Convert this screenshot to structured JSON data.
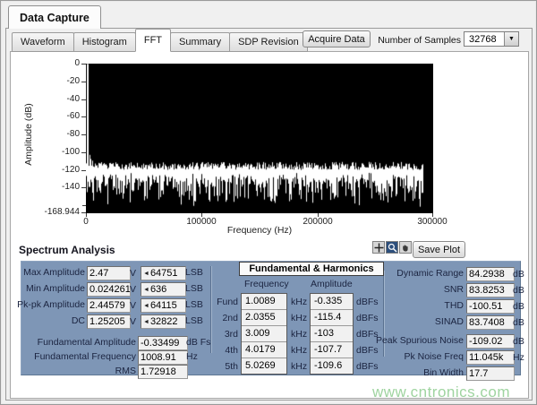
{
  "window_tab": "Data Capture",
  "tabs": [
    {
      "label": "Waveform",
      "active": false
    },
    {
      "label": "Histogram",
      "active": false
    },
    {
      "label": "FFT",
      "active": true
    },
    {
      "label": "Summary",
      "active": false
    },
    {
      "label": "SDP Revision",
      "active": false
    }
  ],
  "toolbar": {
    "acquire_label": "Acquire Data",
    "samples_label": "Number of Samples",
    "samples_value": "32768",
    "save_plot_label": "Save Plot"
  },
  "chart_data": {
    "type": "line",
    "title": "",
    "xlabel": "Frequency (Hz)",
    "ylabel": "Amplitude (dB)",
    "xlim": [
      0,
      300000
    ],
    "ylim": [
      -168.944,
      0
    ],
    "x_ticks": [
      0,
      100000,
      200000,
      300000
    ],
    "x_tick_labels": [
      "0",
      "100000",
      "200000",
      "300000"
    ],
    "y_ticks": [
      0,
      -20,
      -40,
      -60,
      -80,
      -100,
      -120,
      -140,
      -168.944
    ],
    "y_tick_labels": [
      "0",
      "-20",
      "-40",
      "-60",
      "-80",
      "-100",
      "-120",
      "-140",
      "-168.944"
    ],
    "y_minor_unlabeled_ticks": [
      -160
    ],
    "grid": true,
    "legend": "none",
    "plot_bg": "#000000",
    "grid_major_color": "#2f6b2f",
    "grid_minor_color": "#163016",
    "line_color": "#ffffff",
    "series": [
      {
        "name": "fundamental_and_harmonics_peaks",
        "points": [
          {
            "x": 1008.91,
            "y": -0.335
          },
          {
            "x": 2035.5,
            "y": -115.4
          },
          {
            "x": 3009,
            "y": -103
          },
          {
            "x": 4017.9,
            "y": -107.7
          },
          {
            "x": 5026.9,
            "y": -109.6
          }
        ]
      },
      {
        "name": "noise_floor",
        "description": "white noise band ending before right edge",
        "x_start": 0,
        "x_end": 291000,
        "top_db_mean": -116,
        "bottom_db_mean": -140,
        "spike_min_db": -156
      }
    ]
  },
  "analysis": {
    "heading": "Spectrum Analysis",
    "amplitude_rows": [
      {
        "label": "Max Amplitude",
        "volts": "2.47",
        "v_unit": "V",
        "clip": "◄",
        "lsb": "64751",
        "lsb_unit": "LSB"
      },
      {
        "label": "Min Amplitude",
        "volts": "0.0242615",
        "v_unit": "V",
        "clip": "◄",
        "lsb": "636",
        "lsb_unit": "LSB"
      },
      {
        "label": "Pk-pk Amplitude",
        "volts": "2.44579",
        "v_unit": "V",
        "clip": "◄",
        "lsb": "64115",
        "lsb_unit": "LSB"
      },
      {
        "label": "DC",
        "volts": "1.25205",
        "v_unit": "V",
        "clip": "◄",
        "lsb": "32822",
        "lsb_unit": "LSB"
      }
    ],
    "fundamental_rows": [
      {
        "label": "Fundamental Amplitude",
        "value": "-0.33499",
        "unit": "dB Fs"
      },
      {
        "label": "Fundamental Frequency",
        "value": "1008.91",
        "unit": "Hz"
      },
      {
        "label": "RMS",
        "value": "1.72918",
        "unit": ""
      }
    ],
    "harmonics": {
      "title": "Fundamental & Harmonics",
      "freq_header": "Frequency",
      "amp_header": "Amplitude",
      "freq_unit": "kHz",
      "amp_unit": "dBFs",
      "rows": [
        {
          "label": "Fund",
          "freq": "1.0089",
          "amp": "-0.335"
        },
        {
          "label": "2nd",
          "freq": "2.0355",
          "amp": "-115.4"
        },
        {
          "label": "3rd",
          "freq": "3.009",
          "amp": "-103"
        },
        {
          "label": "4th",
          "freq": "4.0179",
          "amp": "-107.7"
        },
        {
          "label": "5th",
          "freq": "5.0269",
          "amp": "-109.6"
        }
      ]
    },
    "metrics_rows": [
      {
        "label": "Dynamic Range",
        "value": "84.2938",
        "unit": "dB"
      },
      {
        "label": "SNR",
        "value": "83.8253",
        "unit": "dB"
      },
      {
        "label": "THD",
        "value": "-100.51",
        "unit": "dB"
      },
      {
        "label": "SINAD",
        "value": "83.7408",
        "unit": "dB"
      },
      {
        "label": "Peak Spurious Noise",
        "value": "-109.02",
        "unit": "dB"
      },
      {
        "label": "Pk Noise Freq",
        "value": "11.045k",
        "unit": "Hz"
      },
      {
        "label": "Bin Width",
        "value": "17.7",
        "unit": ""
      }
    ]
  },
  "watermark": "www.cntronics.com",
  "colors": {
    "panel_bg": "#7e96b6",
    "label_text": "#1b2440",
    "field_bg": "#f1f1f1",
    "watermark_green": "#9fd4a0"
  }
}
